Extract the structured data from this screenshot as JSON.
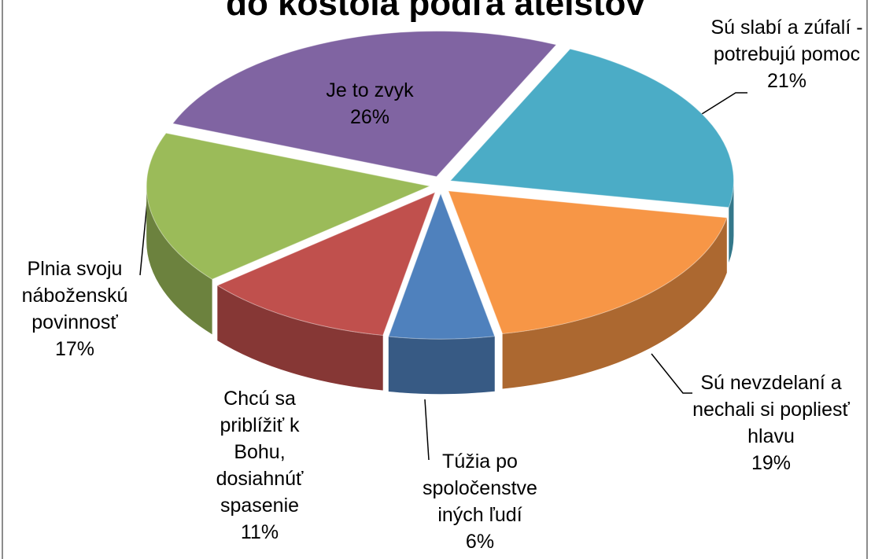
{
  "chart_data": {
    "type": "pie",
    "title": "do kostola podľa ateistov",
    "categories": [
      "Sú slabí a zúfalí - potrebujú pomoc",
      "Sú nevzdelaní a nechali si popliesť hlavu",
      "Túžia po spoločenstve iných ľudí",
      "Chcú sa priblížiť k Bohu, dosiahnúť spasenie",
      "Plnia svoju náboženskú povinnosť",
      "Je to zvyk"
    ],
    "values": [
      21,
      19,
      6,
      11,
      17,
      26
    ],
    "value_labels": [
      "21%",
      "19%",
      "6%",
      "11%",
      "17%",
      "26%"
    ],
    "colors": [
      "#4bacc6",
      "#f79646",
      "#4f81bd",
      "#c0504d",
      "#9bbb59",
      "#8064a2"
    ]
  }
}
